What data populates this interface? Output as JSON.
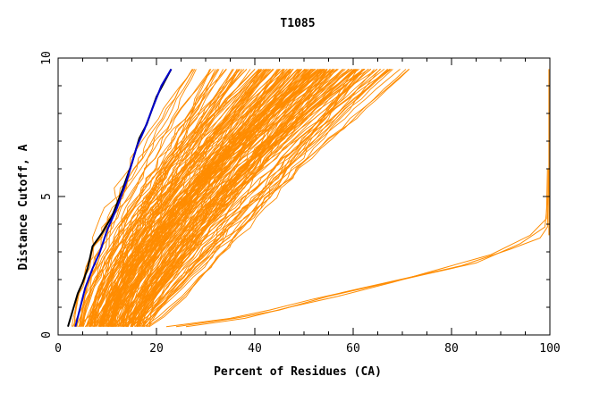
{
  "chart_data": {
    "type": "line",
    "title": "T1085",
    "xlabel": "Percent of Residues (CA)",
    "ylabel": "Distance Cutoff, A",
    "xlim": [
      0,
      100
    ],
    "ylim": [
      0,
      10
    ],
    "x_ticks": [
      0,
      20,
      40,
      60,
      80,
      100
    ],
    "y_ticks": [
      0,
      5,
      10
    ],
    "grid": false,
    "legend": "none",
    "colors": {
      "bundle": "#ff8c00",
      "best_black": "#000000",
      "best_blue": "#0000cc",
      "frame": "#000000"
    },
    "highlighted_series": [
      {
        "color": "black",
        "points": [
          [
            2,
            0.3
          ],
          [
            3,
            0.9
          ],
          [
            4,
            1.5
          ],
          [
            5,
            1.9
          ],
          [
            6,
            2.4
          ],
          [
            7,
            3.2
          ],
          [
            9,
            3.7
          ],
          [
            11,
            4.3
          ],
          [
            13,
            5.2
          ],
          [
            15,
            6.2
          ],
          [
            16.5,
            7.1
          ],
          [
            18,
            7.6
          ],
          [
            20,
            8.6
          ],
          [
            23,
            9.6
          ]
        ]
      },
      {
        "color": "blue",
        "points": [
          [
            3.5,
            0.3
          ],
          [
            4.5,
            1.0
          ],
          [
            5.5,
            1.7
          ],
          [
            7,
            2.4
          ],
          [
            8.5,
            3.0
          ],
          [
            10,
            3.8
          ],
          [
            12,
            4.6
          ],
          [
            14,
            5.6
          ],
          [
            16,
            6.8
          ],
          [
            17.5,
            7.4
          ],
          [
            19,
            8.1
          ],
          [
            21,
            9.0
          ],
          [
            23,
            9.6
          ]
        ]
      }
    ],
    "bundle_series": {
      "description_free": true,
      "main_count": 190,
      "start_x_range": [
        3,
        18
      ],
      "end_x_range": [
        24,
        73
      ],
      "y_start": 0.3,
      "y_end": 9.6,
      "low_outliers": [
        {
          "points": [
            [
              22,
              0.3
            ],
            [
              35,
              0.6
            ],
            [
              43,
              0.9
            ],
            [
              52,
              1.3
            ],
            [
              62,
              1.7
            ],
            [
              72,
              2.1
            ],
            [
              82,
              2.5
            ],
            [
              92,
              3.1
            ],
            [
              98,
              3.5
            ],
            [
              99.5,
              3.9
            ],
            [
              99.7,
              6.0
            ]
          ]
        },
        {
          "points": [
            [
              24,
              0.3
            ],
            [
              36,
              0.6
            ],
            [
              45,
              0.9
            ],
            [
              55,
              1.4
            ],
            [
              65,
              1.8
            ],
            [
              75,
              2.2
            ],
            [
              85,
              2.6
            ],
            [
              94,
              3.3
            ],
            [
              99,
              3.9
            ],
            [
              99.6,
              5.0
            ]
          ]
        },
        {
          "points": [
            [
              26,
              0.3
            ],
            [
              38,
              0.6
            ],
            [
              47,
              1.0
            ],
            [
              57,
              1.4
            ],
            [
              68,
              1.9
            ],
            [
              78,
              2.4
            ],
            [
              88,
              2.9
            ],
            [
              96,
              3.6
            ],
            [
              99.3,
              4.2
            ],
            [
              99.5,
              6.0
            ]
          ]
        }
      ],
      "vertical_segment": {
        "x": 99.8,
        "y": [
          3.6,
          9.6
        ]
      }
    }
  }
}
